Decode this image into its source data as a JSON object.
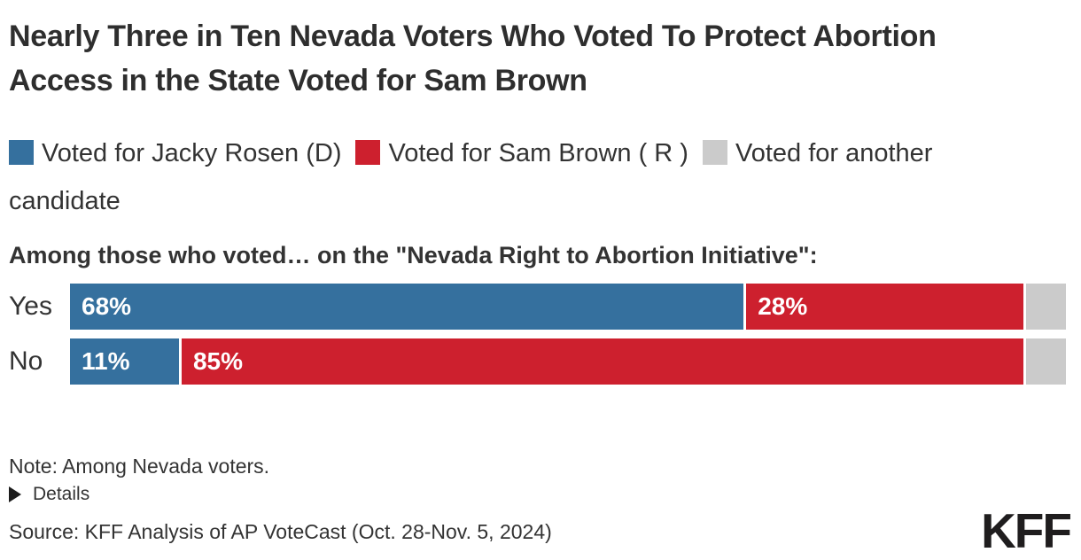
{
  "title": "Nearly Three in Ten Nevada Voters Who Voted To Protect Abortion Access in the State Voted for Sam Brown",
  "subtitle": "Among those who voted… on the \"Nevada Right to Abortion Initiative\":",
  "colors": {
    "rosen_blue": "#35709E",
    "brown_red": "#CD202E",
    "other_gray": "#CBCBCB",
    "text": "#333333",
    "bar_label": "#FFFFFF"
  },
  "legend": [
    {
      "key": "rosen",
      "label": "Voted for Jacky Rosen (D)",
      "color": "#35709E"
    },
    {
      "key": "brown",
      "label": "Voted for Sam Brown ( R )",
      "color": "#CD202E"
    },
    {
      "key": "other",
      "label": "Voted for another candidate",
      "color": "#CBCBCB"
    }
  ],
  "chart_data": {
    "type": "bar",
    "orientation": "horizontal",
    "stacked": true,
    "title": "Nearly Three in Ten Nevada Voters Who Voted To Protect Abortion Access in the State Voted for Sam Brown",
    "subtitle": "Among those who voted… on the \"Nevada Right to Abortion Initiative\":",
    "categories": [
      "Yes",
      "No"
    ],
    "series": [
      {
        "key": "rosen",
        "name": "Voted for Jacky Rosen (D)",
        "color": "#35709E",
        "values": [
          68,
          11
        ],
        "labels": [
          "68%",
          "11%"
        ]
      },
      {
        "key": "brown",
        "name": "Voted for Sam Brown ( R )",
        "color": "#CD202E",
        "values": [
          28,
          85
        ],
        "labels": [
          "28%",
          "85%"
        ]
      },
      {
        "key": "other",
        "name": "Voted for another candidate",
        "color": "#CBCBCB",
        "values": [
          4,
          4
        ],
        "labels": [
          "",
          ""
        ]
      }
    ],
    "xlim": [
      0,
      100
    ],
    "value_labels_shown": true,
    "legend_position": "top",
    "grid": false
  },
  "footer": {
    "note": "Note: Among Nevada voters.",
    "details_label": "Details",
    "source": "Source: KFF Analysis of AP VoteCast (Oct. 28-Nov. 5, 2024)",
    "logo": "KFF"
  }
}
